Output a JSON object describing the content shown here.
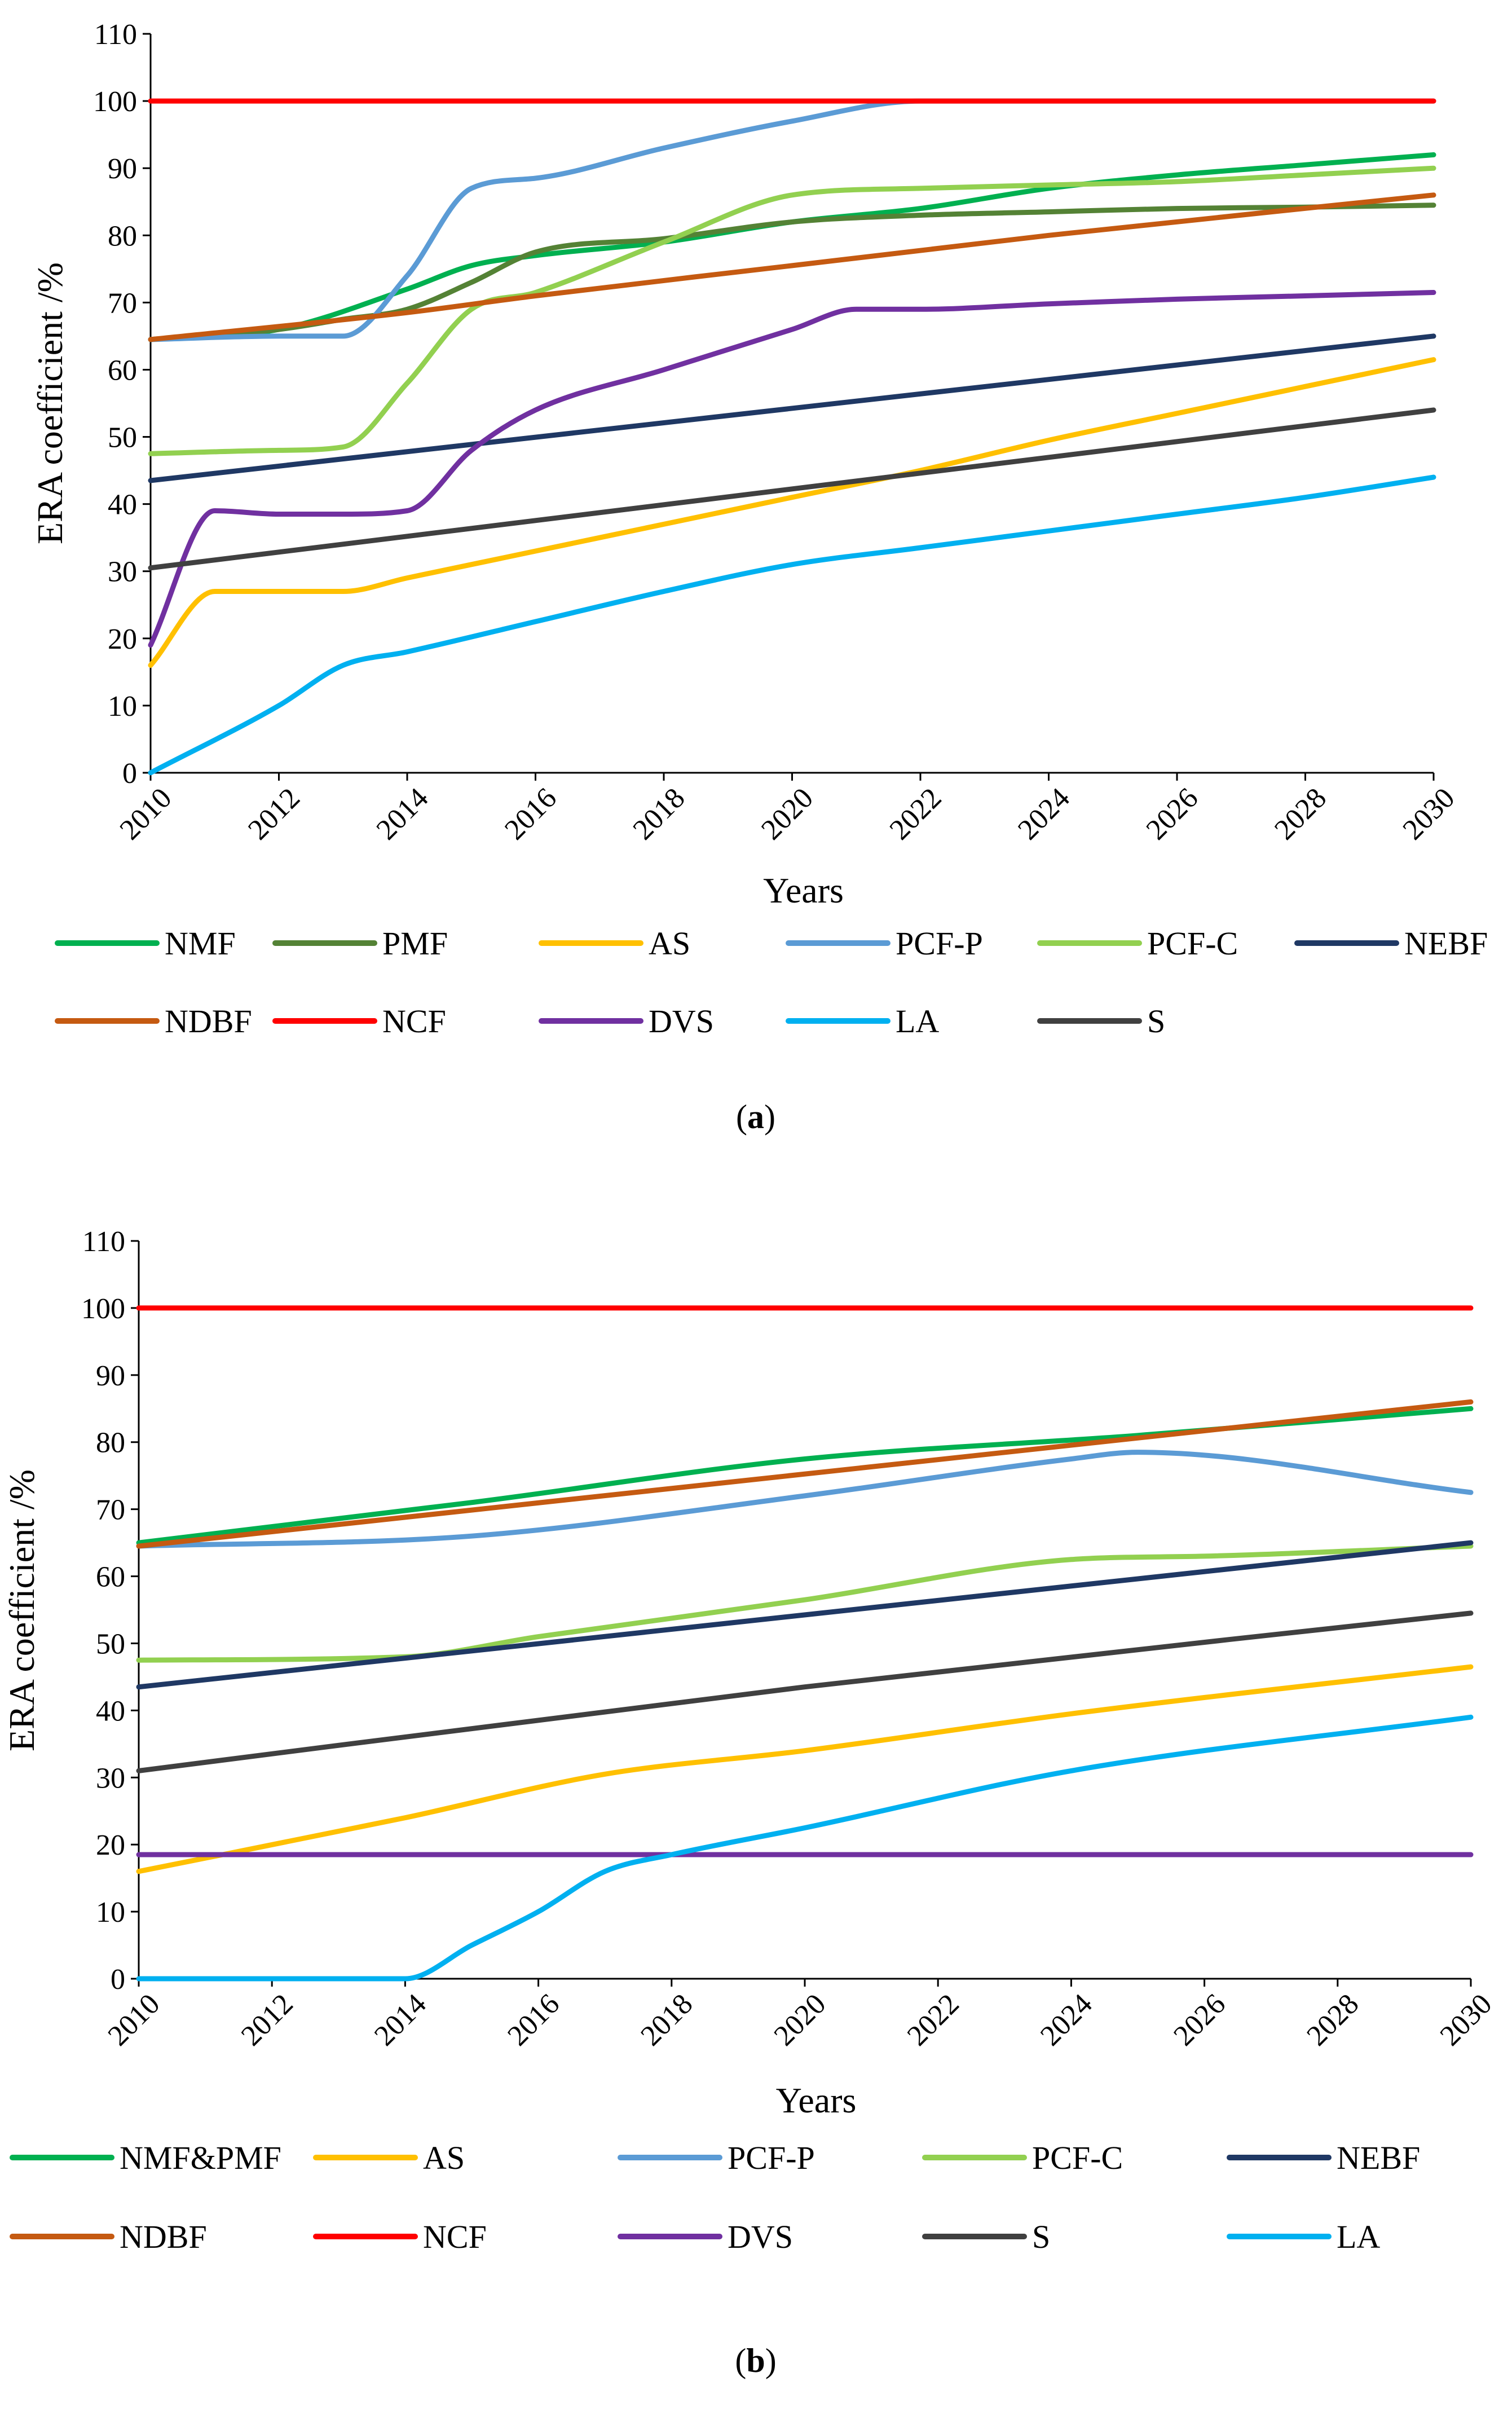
{
  "chart_data": [
    {
      "type": "line",
      "panel": "a",
      "caption_letter": "a",
      "title": "",
      "xlabel": "Years",
      "ylabel": "ERA coefficient /%",
      "xlim": [
        2010,
        2030
      ],
      "ylim": [
        0,
        110
      ],
      "x_ticks": [
        "2010",
        "2012",
        "2014",
        "2016",
        "2018",
        "2020",
        "2022",
        "2024",
        "2026",
        "2028",
        "2030"
      ],
      "y_ticks": [
        "0",
        "10",
        "20",
        "30",
        "40",
        "50",
        "60",
        "70",
        "80",
        "90",
        "100",
        "110"
      ],
      "legend": [
        "NMF",
        "PMF",
        "AS",
        "PCF-P",
        "PCF-C",
        "NEBF",
        "NDBF",
        "NCF",
        "DVS",
        "LA",
        "S"
      ],
      "series": [
        {
          "name": "NMF",
          "color": "#00b050",
          "points": [
            [
              2010,
              64.5
            ],
            [
              2012,
              66
            ],
            [
              2014,
              72
            ],
            [
              2015,
              75.5
            ],
            [
              2016,
              77
            ],
            [
              2018,
              79
            ],
            [
              2020,
              82
            ],
            [
              2022,
              84
            ],
            [
              2024,
              87
            ],
            [
              2026,
              89
            ],
            [
              2028,
              90.5
            ],
            [
              2030,
              92
            ]
          ]
        },
        {
          "name": "PMF",
          "color": "#548235",
          "points": [
            [
              2010,
              64.5
            ],
            [
              2012,
              66
            ],
            [
              2013,
              67.5
            ],
            [
              2014,
              69
            ],
            [
              2015,
              73
            ],
            [
              2016,
              77.5
            ],
            [
              2018,
              79.5
            ],
            [
              2020,
              82
            ],
            [
              2022,
              83
            ],
            [
              2024,
              83.5
            ],
            [
              2026,
              84
            ],
            [
              2028,
              84.2
            ],
            [
              2030,
              84.5
            ]
          ]
        },
        {
          "name": "AS",
          "color": "#ffc000",
          "points": [
            [
              2010,
              16
            ],
            [
              2011,
              27
            ],
            [
              2012,
              27
            ],
            [
              2013,
              27
            ],
            [
              2014,
              29
            ],
            [
              2016,
              33
            ],
            [
              2018,
              37
            ],
            [
              2020,
              41
            ],
            [
              2022,
              45
            ],
            [
              2024,
              49.5
            ],
            [
              2026,
              53.5
            ],
            [
              2028,
              57.5
            ],
            [
              2030,
              61.5
            ]
          ]
        },
        {
          "name": "PCF-P",
          "color": "#5b9bd5",
          "points": [
            [
              2010,
              64.5
            ],
            [
              2012,
              65
            ],
            [
              2013,
              65
            ],
            [
              2014,
              74
            ],
            [
              2015,
              87
            ],
            [
              2016,
              88.5
            ],
            [
              2018,
              93
            ],
            [
              2020,
              97
            ],
            [
              2022,
              100
            ],
            [
              2024,
              100
            ],
            [
              2026,
              100
            ],
            [
              2028,
              100
            ],
            [
              2030,
              100
            ]
          ]
        },
        {
          "name": "PCF-C",
          "color": "#92d050",
          "points": [
            [
              2010,
              47.5
            ],
            [
              2012,
              48
            ],
            [
              2013,
              48.5
            ],
            [
              2014,
              58
            ],
            [
              2015,
              69
            ],
            [
              2016,
              71.5
            ],
            [
              2018,
              79
            ],
            [
              2020,
              86
            ],
            [
              2022,
              87
            ],
            [
              2024,
              87.5
            ],
            [
              2026,
              88
            ],
            [
              2028,
              89
            ],
            [
              2030,
              90
            ]
          ]
        },
        {
          "name": "NEBF",
          "color": "#1f3864",
          "points": [
            [
              2010,
              43.5
            ],
            [
              2030,
              65
            ]
          ]
        },
        {
          "name": "NDBF",
          "color": "#c55a11",
          "points": [
            [
              2010,
              64.5
            ],
            [
              2014,
              68.5
            ],
            [
              2016,
              71
            ],
            [
              2020,
              75.5
            ],
            [
              2024,
              80
            ],
            [
              2030,
              86
            ]
          ]
        },
        {
          "name": "NCF",
          "color": "#ff0000",
          "points": [
            [
              2010,
              100
            ],
            [
              2030,
              100
            ]
          ]
        },
        {
          "name": "DVS",
          "color": "#7030a0",
          "points": [
            [
              2010,
              19
            ],
            [
              2011,
              39
            ],
            [
              2012,
              38.5
            ],
            [
              2013,
              38.5
            ],
            [
              2014,
              39
            ],
            [
              2015,
              48
            ],
            [
              2016,
              54
            ],
            [
              2018,
              60
            ],
            [
              2020,
              66
            ],
            [
              2021,
              69
            ],
            [
              2022,
              69
            ],
            [
              2024,
              69.8
            ],
            [
              2026,
              70.5
            ],
            [
              2028,
              71
            ],
            [
              2030,
              71.5
            ]
          ]
        },
        {
          "name": "LA",
          "color": "#00b0f0",
          "points": [
            [
              2010,
              0
            ],
            [
              2012,
              10
            ],
            [
              2013,
              16
            ],
            [
              2014,
              18
            ],
            [
              2016,
              22.5
            ],
            [
              2018,
              27
            ],
            [
              2020,
              31
            ],
            [
              2022,
              33.5
            ],
            [
              2024,
              36
            ],
            [
              2026,
              38.5
            ],
            [
              2028,
              41
            ],
            [
              2030,
              44
            ]
          ]
        },
        {
          "name": "S",
          "color": "#404040",
          "points": [
            [
              2010,
              30.5
            ],
            [
              2030,
              54
            ]
          ]
        }
      ]
    },
    {
      "type": "line",
      "panel": "b",
      "caption_letter": "b",
      "title": "",
      "xlabel": "Years",
      "ylabel": "ERA coefficient /%",
      "xlim": [
        2010,
        2030
      ],
      "ylim": [
        0,
        110
      ],
      "x_ticks": [
        "2010",
        "2012",
        "2014",
        "2016",
        "2018",
        "2020",
        "2022",
        "2024",
        "2026",
        "2028",
        "2030"
      ],
      "y_ticks": [
        "0",
        "10",
        "20",
        "30",
        "40",
        "50",
        "60",
        "70",
        "80",
        "90",
        "100",
        "110"
      ],
      "legend": [
        "NMF&PMF",
        "AS",
        "PCF-P",
        "PCF-C",
        "NEBF",
        "NDBF",
        "NCF",
        "DVS",
        "S",
        "LA"
      ],
      "series": [
        {
          "name": "NMF&PMF",
          "color": "#00b050",
          "points": [
            [
              2010,
              65
            ],
            [
              2015,
              71
            ],
            [
              2020,
              77.5
            ],
            [
              2025,
              81
            ],
            [
              2030,
              85
            ]
          ]
        },
        {
          "name": "AS",
          "color": "#ffc000",
          "points": [
            [
              2010,
              16
            ],
            [
              2014,
              24
            ],
            [
              2017,
              30.5
            ],
            [
              2020,
              34
            ],
            [
              2024,
              39.5
            ],
            [
              2030,
              46.5
            ]
          ]
        },
        {
          "name": "PCF-P",
          "color": "#5b9bd5",
          "points": [
            [
              2010,
              64.5
            ],
            [
              2015,
              66
            ],
            [
              2020,
              72
            ],
            [
              2024,
              77.5
            ],
            [
              2025,
              78.5
            ],
            [
              2030,
              72.5
            ]
          ]
        },
        {
          "name": "PCF-C",
          "color": "#92d050",
          "points": [
            [
              2010,
              47.5
            ],
            [
              2014,
              48
            ],
            [
              2016,
              51
            ],
            [
              2020,
              56.5
            ],
            [
              2024,
              62.5
            ],
            [
              2026,
              63
            ],
            [
              2030,
              64.5
            ]
          ]
        },
        {
          "name": "NEBF",
          "color": "#1f3864",
          "points": [
            [
              2010,
              43.5
            ],
            [
              2030,
              65
            ]
          ]
        },
        {
          "name": "NDBF",
          "color": "#c55a11",
          "points": [
            [
              2010,
              64.5
            ],
            [
              2030,
              86
            ]
          ]
        },
        {
          "name": "NCF",
          "color": "#ff0000",
          "points": [
            [
              2010,
              100
            ],
            [
              2030,
              100
            ]
          ]
        },
        {
          "name": "DVS",
          "color": "#7030a0",
          "points": [
            [
              2010,
              18.5
            ],
            [
              2030,
              18.5
            ]
          ]
        },
        {
          "name": "S",
          "color": "#404040",
          "points": [
            [
              2010,
              31
            ],
            [
              2020,
              43.5
            ],
            [
              2030,
              54.5
            ]
          ]
        },
        {
          "name": "LA",
          "color": "#00b0f0",
          "points": [
            [
              2010,
              0
            ],
            [
              2014,
              0
            ],
            [
              2015,
              5
            ],
            [
              2016,
              10
            ],
            [
              2017,
              16
            ],
            [
              2018,
              18.5
            ],
            [
              2020,
              22.5
            ],
            [
              2024,
              31
            ],
            [
              2030,
              39
            ]
          ]
        }
      ]
    }
  ]
}
